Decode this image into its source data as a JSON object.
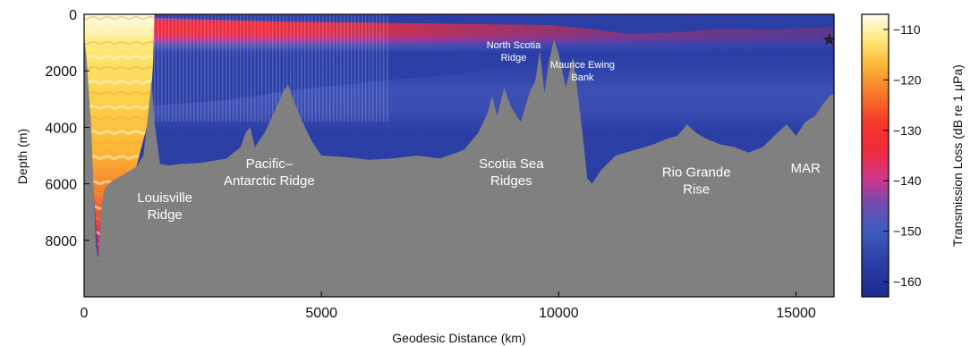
{
  "chart_data": {
    "type": "heatmap",
    "title": "",
    "xlabel": "Geodesic Distance (km)",
    "ylabel": "Depth (m)",
    "xlim": [
      0,
      15800
    ],
    "ylim": [
      10000,
      0
    ],
    "y_reversed": true,
    "xticks": [
      {
        "value": 0,
        "label": "0"
      },
      {
        "value": 5000,
        "label": "5000"
      },
      {
        "value": 10000,
        "label": "10000"
      },
      {
        "value": 15000,
        "label": "15000"
      }
    ],
    "yticks": [
      {
        "value": 0,
        "label": "0"
      },
      {
        "value": 2000,
        "label": "2000"
      },
      {
        "value": 4000,
        "label": "4000"
      },
      {
        "value": 6000,
        "label": "6000"
      },
      {
        "value": 8000,
        "label": "8000"
      }
    ],
    "colorbar": {
      "label": "Transmission Loss (dB re 1 µPa)",
      "range": [
        -163,
        -107
      ],
      "ticks": [
        {
          "value": -110,
          "label": "−110"
        },
        {
          "value": -120,
          "label": "−120"
        },
        {
          "value": -130,
          "label": "−130"
        },
        {
          "value": -140,
          "label": "−140"
        },
        {
          "value": -150,
          "label": "−150"
        },
        {
          "value": -160,
          "label": "−160"
        }
      ]
    },
    "seafloor_color": "#808080",
    "seafloor_profile": [
      [
        0,
        800
      ],
      [
        50,
        1500
      ],
      [
        100,
        2800
      ],
      [
        150,
        4000
      ],
      [
        200,
        6200
      ],
      [
        250,
        8200
      ],
      [
        300,
        8800
      ],
      [
        350,
        7000
      ],
      [
        420,
        6200
      ],
      [
        550,
        5950
      ],
      [
        800,
        5700
      ],
      [
        1100,
        5400
      ],
      [
        1250,
        5000
      ],
      [
        1350,
        3500
      ],
      [
        1420,
        2300
      ],
      [
        1480,
        3800
      ],
      [
        1600,
        5300
      ],
      [
        1800,
        5350
      ],
      [
        2000,
        5300
      ],
      [
        2500,
        5250
      ],
      [
        3000,
        5100
      ],
      [
        3300,
        4700
      ],
      [
        3400,
        4200
      ],
      [
        3500,
        4000
      ],
      [
        3600,
        4700
      ],
      [
        3800,
        4200
      ],
      [
        4000,
        3500
      ],
      [
        4200,
        2700
      ],
      [
        4300,
        2500
      ],
      [
        4400,
        3000
      ],
      [
        4600,
        3800
      ],
      [
        4800,
        4500
      ],
      [
        5000,
        5000
      ],
      [
        5500,
        5050
      ],
      [
        6000,
        5150
      ],
      [
        6500,
        5100
      ],
      [
        7000,
        5000
      ],
      [
        7500,
        5100
      ],
      [
        8000,
        4800
      ],
      [
        8300,
        4200
      ],
      [
        8500,
        3500
      ],
      [
        8600,
        2900
      ],
      [
        8700,
        3600
      ],
      [
        8850,
        2600
      ],
      [
        9000,
        3300
      ],
      [
        9200,
        3800
      ],
      [
        9400,
        2700
      ],
      [
        9500,
        2400
      ],
      [
        9600,
        1300
      ],
      [
        9700,
        2800
      ],
      [
        9800,
        1600
      ],
      [
        9900,
        900
      ],
      [
        10000,
        1400
      ],
      [
        10150,
        2600
      ],
      [
        10300,
        1500
      ],
      [
        10400,
        2800
      ],
      [
        10500,
        4200
      ],
      [
        10600,
        5800
      ],
      [
        10700,
        6000
      ],
      [
        10900,
        5500
      ],
      [
        11200,
        5000
      ],
      [
        11600,
        4800
      ],
      [
        12000,
        4600
      ],
      [
        12300,
        4400
      ],
      [
        12500,
        4300
      ],
      [
        12700,
        3900
      ],
      [
        12900,
        4200
      ],
      [
        13100,
        4400
      ],
      [
        13400,
        4600
      ],
      [
        13700,
        4700
      ],
      [
        14000,
        4900
      ],
      [
        14300,
        4700
      ],
      [
        14600,
        4200
      ],
      [
        14800,
        3900
      ],
      [
        15000,
        4300
      ],
      [
        15200,
        3800
      ],
      [
        15400,
        3600
      ],
      [
        15600,
        3100
      ],
      [
        15700,
        2900
      ],
      [
        15800,
        2800
      ]
    ],
    "source_marker": {
      "x": 15700,
      "y": 900,
      "symbol": "star"
    },
    "annotations": [
      {
        "lines": [
          "Louisville",
          "Ridge"
        ],
        "x": 1700,
        "y": 6650,
        "size": "large"
      },
      {
        "lines": [
          "Pacific–",
          "Antarctic Ridge"
        ],
        "x": 3900,
        "y": 5450,
        "size": "large"
      },
      {
        "lines": [
          "North Scotia",
          "Ridge"
        ],
        "x": 9050,
        "y": 1200,
        "size": "small"
      },
      {
        "lines": [
          "Maurice Ewing",
          "Bank"
        ],
        "x": 10500,
        "y": 1900,
        "size": "small"
      },
      {
        "lines": [
          "Scotia Sea",
          "Ridges"
        ],
        "x": 9000,
        "y": 5450,
        "size": "large"
      },
      {
        "lines": [
          "Rio Grande",
          "Rise"
        ],
        "x": 12900,
        "y": 5750,
        "size": "large"
      },
      {
        "lines": [
          "MAR"
        ],
        "x": 15200,
        "y": 5600,
        "size": "large"
      }
    ]
  }
}
